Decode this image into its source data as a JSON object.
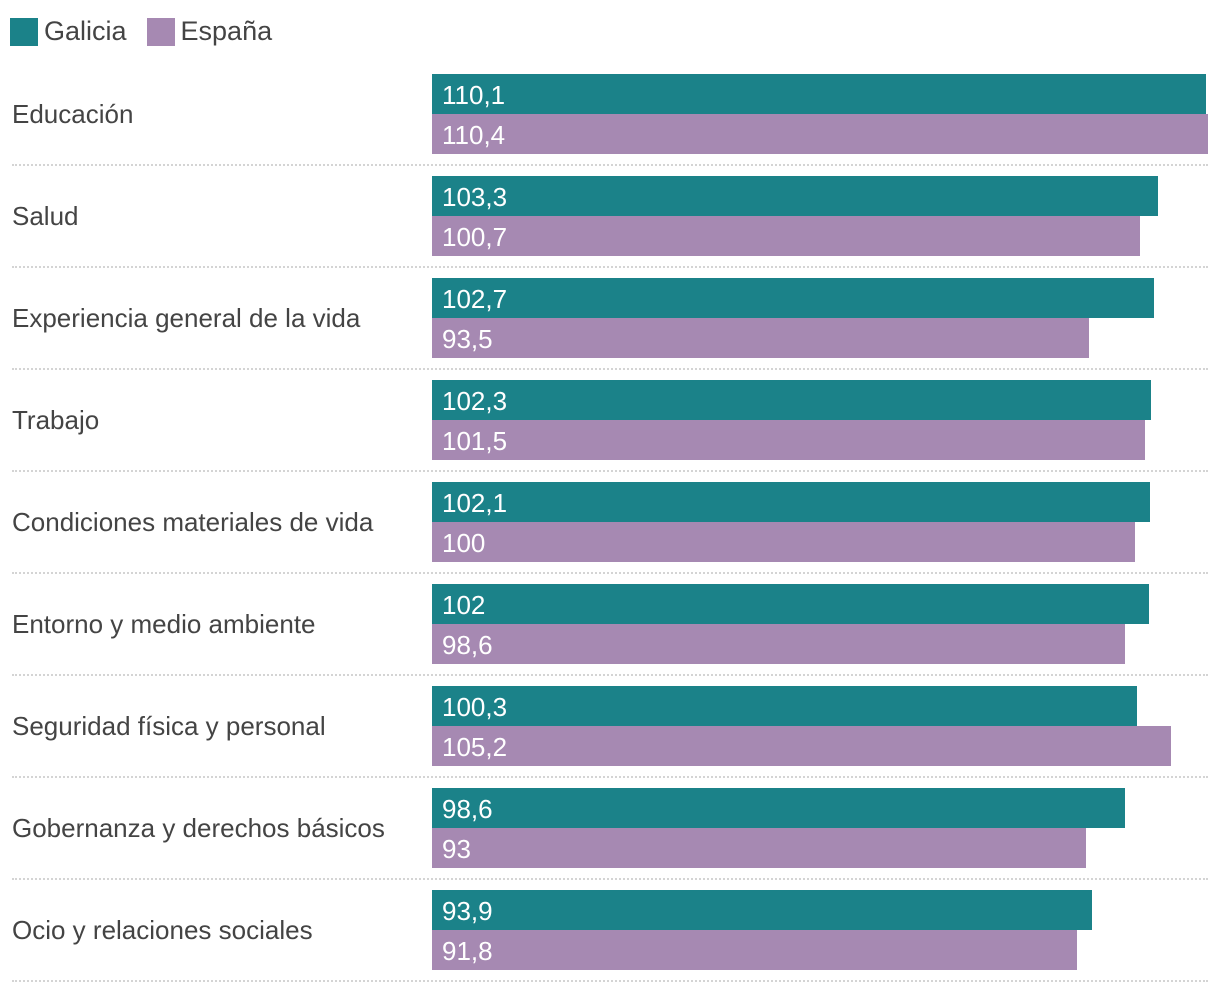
{
  "legend": [
    {
      "name": "Galicia",
      "color": "#1b8289"
    },
    {
      "name": "España",
      "color": "#a689b2"
    }
  ],
  "chart_data": {
    "type": "bar",
    "orientation": "horizontal",
    "categories": [
      "Educación",
      "Salud",
      "Experiencia general de la vida",
      "Trabajo",
      "Condiciones materiales de vida",
      "Entorno y medio ambiente",
      "Seguridad física y personal",
      "Gobernanza y derechos básicos",
      "Ocio y relaciones sociales"
    ],
    "series": [
      {
        "name": "Galicia",
        "values": [
          110.1,
          103.3,
          102.7,
          102.3,
          102.1,
          102,
          100.3,
          98.6,
          93.9
        ],
        "labels": [
          "110,1",
          "103,3",
          "102,7",
          "102,3",
          "102,1",
          "102",
          "100,3",
          "98,6",
          "93,9"
        ]
      },
      {
        "name": "España",
        "values": [
          110.4,
          100.7,
          93.5,
          101.5,
          100,
          98.6,
          105.2,
          93,
          91.8
        ],
        "labels": [
          "110,4",
          "100,7",
          "93,5",
          "101,5",
          "100",
          "98,6",
          "105,2",
          "93",
          "91,8"
        ]
      }
    ],
    "xlim": [
      0,
      110.4
    ],
    "grid": false,
    "legend_position": "top-left"
  }
}
